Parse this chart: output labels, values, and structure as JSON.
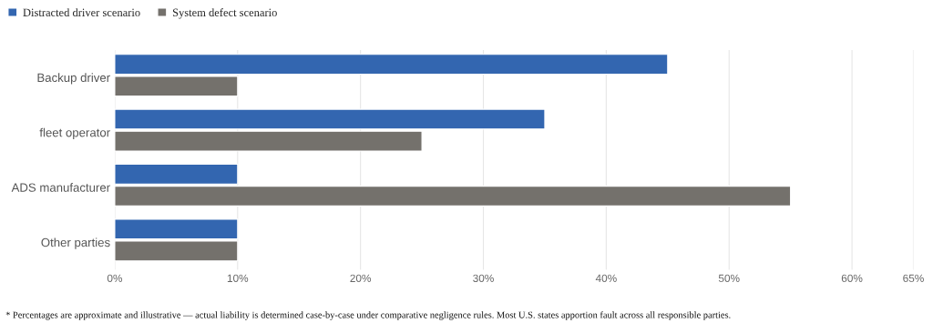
{
  "chart_data": {
    "type": "bar",
    "orientation": "horizontal",
    "categories": [
      "Backup driver",
      "fleet operator",
      "ADS manufacturer",
      "Other parties"
    ],
    "series": [
      {
        "name": "Distracted driver scenario",
        "color": "#3366b0",
        "values": [
          45,
          35,
          10,
          10
        ]
      },
      {
        "name": "System defect scenario",
        "color": "#74716c",
        "values": [
          10,
          25,
          55,
          10
        ]
      }
    ],
    "xlim": [
      0,
      65
    ],
    "xticks": [
      {
        "value": 0,
        "label": "0%"
      },
      {
        "value": 10,
        "label": "10%"
      },
      {
        "value": 20,
        "label": "20%"
      },
      {
        "value": 30,
        "label": "30%"
      },
      {
        "value": 40,
        "label": "40%"
      },
      {
        "value": 50,
        "label": "50%"
      },
      {
        "value": 60,
        "label": "60%"
      },
      {
        "value": 65,
        "label": "65%"
      }
    ],
    "grid": "x",
    "legend": "top left",
    "annotations": [
      "* Percentages are approximate and illustrative — actual liability is determined case-by-case under comparative negligence rules. Most U.S. states apportion fault across all responsible parties."
    ]
  }
}
